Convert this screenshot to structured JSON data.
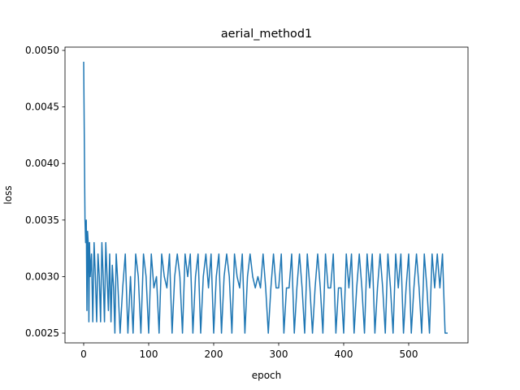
{
  "chart_data": {
    "type": "line",
    "title": "aerial_method1",
    "x_label": "epoch",
    "y_label": "loss",
    "color": "#1f77b4",
    "grid": false,
    "xlim": [
      -28.75,
      591.25
    ],
    "ylim": [
      0.002414,
      0.005029
    ],
    "xticks": [
      0,
      100,
      200,
      300,
      400,
      500
    ],
    "yticks": [
      0.0025,
      {
        "value": 0.003,
        "label": "0.0030"
      },
      0.0035,
      {
        "value": 0.004,
        "label": "0.0040"
      },
      0.0045,
      {
        "value": 0.005,
        "label": "0.0050"
      }
    ],
    "x": [
      0,
      1,
      2,
      3,
      4,
      5,
      6,
      7,
      8,
      9,
      10,
      12,
      14,
      16,
      18,
      20,
      22,
      24,
      26,
      28,
      30,
      32,
      34,
      36,
      38,
      40,
      42,
      44,
      46,
      48,
      50,
      52,
      56,
      60,
      64,
      68,
      72,
      76,
      80,
      84,
      88,
      92,
      96,
      100,
      104,
      108,
      112,
      116,
      120,
      124,
      128,
      132,
      136,
      140,
      144,
      148,
      152,
      156,
      160,
      164,
      168,
      172,
      176,
      180,
      184,
      188,
      192,
      196,
      200,
      204,
      208,
      212,
      216,
      220,
      224,
      228,
      232,
      236,
      240,
      244,
      248,
      252,
      256,
      260,
      264,
      268,
      272,
      276,
      280,
      284,
      288,
      292,
      296,
      300,
      304,
      308,
      312,
      316,
      320,
      324,
      328,
      332,
      336,
      340,
      344,
      348,
      352,
      356,
      360,
      364,
      368,
      372,
      376,
      380,
      384,
      388,
      392,
      396,
      400,
      404,
      408,
      412,
      416,
      420,
      424,
      428,
      432,
      436,
      440,
      444,
      448,
      452,
      456,
      460,
      464,
      468,
      472,
      476,
      480,
      484,
      488,
      492,
      496,
      500,
      504,
      508,
      512,
      516,
      520,
      524,
      528,
      532,
      536,
      540,
      544,
      548,
      552,
      556,
      560
    ],
    "values": [
      0.0049,
      0.0042,
      0.0035,
      0.0033,
      0.0035,
      0.0027,
      0.0034,
      0.0033,
      0.0026,
      0.0033,
      0.003,
      0.0032,
      0.0026,
      0.0033,
      0.003,
      0.0026,
      0.0032,
      0.003,
      0.0026,
      0.0033,
      0.003,
      0.0026,
      0.0033,
      0.003,
      0.0027,
      0.0032,
      0.0026,
      0.0031,
      0.0029,
      0.0025,
      0.0032,
      0.003,
      0.0025,
      0.0029,
      0.0032,
      0.0025,
      0.003,
      0.0025,
      0.0032,
      0.003,
      0.0025,
      0.0032,
      0.003,
      0.0025,
      0.0032,
      0.0029,
      0.003,
      0.0025,
      0.0032,
      0.003,
      0.0029,
      0.0032,
      0.0025,
      0.003,
      0.0032,
      0.003,
      0.0025,
      0.0032,
      0.003,
      0.0032,
      0.0025,
      0.003,
      0.0032,
      0.0025,
      0.003,
      0.0032,
      0.0029,
      0.0032,
      0.0025,
      0.003,
      0.0032,
      0.0025,
      0.003,
      0.0032,
      0.003,
      0.0025,
      0.0032,
      0.003,
      0.0029,
      0.0032,
      0.0025,
      0.003,
      0.0032,
      0.003,
      0.0029,
      0.003,
      0.0029,
      0.0032,
      0.0029,
      0.0025,
      0.0029,
      0.0032,
      0.0029,
      0.0029,
      0.0032,
      0.0025,
      0.0029,
      0.0029,
      0.0032,
      0.0025,
      0.0029,
      0.0032,
      0.0029,
      0.0025,
      0.0032,
      0.0029,
      0.0025,
      0.0029,
      0.0032,
      0.0029,
      0.0025,
      0.0032,
      0.0029,
      0.0029,
      0.0032,
      0.0025,
      0.0029,
      0.0029,
      0.0025,
      0.0032,
      0.0029,
      0.0032,
      0.0025,
      0.0029,
      0.0032,
      0.0029,
      0.0025,
      0.0032,
      0.0029,
      0.0032,
      0.0025,
      0.0029,
      0.0032,
      0.0029,
      0.0025,
      0.0032,
      0.0029,
      0.0025,
      0.0032,
      0.0029,
      0.0032,
      0.0025,
      0.0029,
      0.0032,
      0.0025,
      0.0029,
      0.0032,
      0.0029,
      0.0025,
      0.0032,
      0.0029,
      0.0025,
      0.0032,
      0.0029,
      0.0032,
      0.0029,
      0.0032,
      0.0025,
      0.0025
    ]
  }
}
